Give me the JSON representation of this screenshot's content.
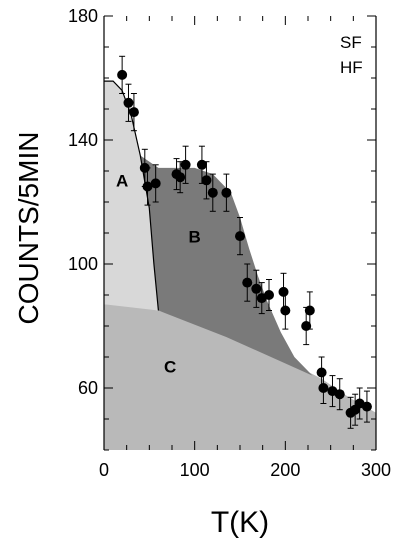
{
  "chart_data": {
    "type": "scatter",
    "xlabel": "T(K)",
    "ylabel": "COUNTS/5MIN",
    "xlim": [
      0,
      300
    ],
    "ylim": [
      40,
      180
    ],
    "x_ticks": [
      0,
      100,
      200,
      300
    ],
    "y_ticks": [
      60,
      100,
      140,
      180
    ],
    "mode_labels": [
      "SF",
      "HF"
    ],
    "region_labels": [
      {
        "label": "A",
        "x": 20,
        "y": 125
      },
      {
        "label": "B",
        "x": 100,
        "y": 107
      },
      {
        "label": "C",
        "x": 73,
        "y": 65
      }
    ],
    "regions": {
      "A_boundary": [
        [
          0,
          159
        ],
        [
          10,
          159
        ],
        [
          20,
          156
        ],
        [
          30,
          148
        ],
        [
          40,
          135
        ],
        [
          50,
          118
        ],
        [
          55,
          100
        ],
        [
          60,
          85
        ]
      ],
      "B_boundary": [
        [
          40,
          132
        ],
        [
          60,
          131
        ],
        [
          80,
          131
        ],
        [
          100,
          131
        ],
        [
          120,
          129
        ],
        [
          140,
          123
        ],
        [
          150,
          115
        ],
        [
          160,
          105
        ],
        [
          170,
          96
        ],
        [
          180,
          88
        ],
        [
          195,
          78
        ],
        [
          210,
          70
        ],
        [
          230,
          64
        ]
      ],
      "C_boundary": [
        [
          0,
          87
        ],
        [
          20,
          87
        ],
        [
          40,
          86
        ],
        [
          60,
          85
        ],
        [
          100,
          81
        ],
        [
          150,
          75
        ],
        [
          200,
          69
        ],
        [
          240,
          63
        ],
        [
          270,
          57
        ],
        [
          300,
          52
        ]
      ]
    },
    "series": [
      {
        "x": [
          20,
          27,
          33,
          45,
          48,
          57,
          80,
          84,
          90,
          108,
          113,
          120,
          135,
          150,
          158,
          168,
          174,
          182,
          198,
          200,
          223,
          227,
          240,
          242,
          252,
          260,
          272,
          277,
          282,
          290
        ],
        "y": [
          161,
          152,
          149,
          131,
          125,
          126,
          129,
          128,
          132,
          132,
          127,
          123,
          123,
          109,
          94,
          92,
          89,
          90,
          91,
          85,
          80,
          85,
          65,
          60,
          59,
          58,
          52,
          53,
          55,
          54
        ],
        "error": [
          6,
          6,
          6,
          6,
          6,
          6,
          5,
          5,
          6,
          6,
          6,
          6,
          6,
          6,
          6,
          6,
          5,
          5,
          6,
          6,
          6,
          6,
          5,
          5,
          5,
          5,
          5,
          5,
          5,
          5
        ]
      }
    ],
    "grid": false,
    "legend": "none"
  }
}
